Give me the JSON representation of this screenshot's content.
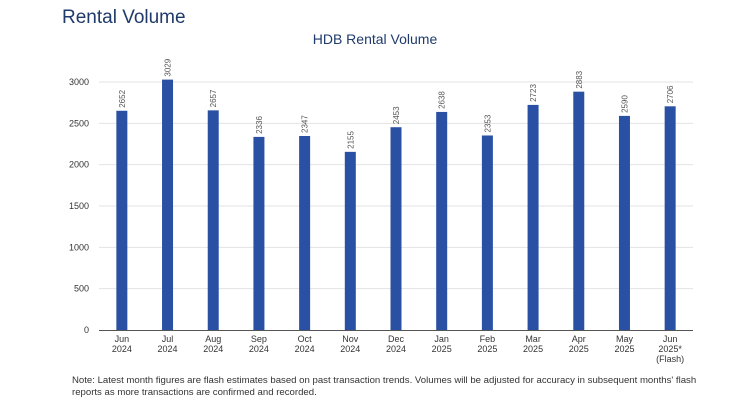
{
  "page": {
    "title": "Rental Volume",
    "note": "Note: Latest month figures are flash estimates based on past transaction trends. Volumes will be adjusted for accuracy in subsequent months' flash reports as more transactions are confirmed and recorded."
  },
  "chart_data": {
    "type": "bar",
    "title": "HDB Rental Volume",
    "xlabel": "",
    "ylabel": "",
    "categories": [
      [
        "Jun",
        "2024"
      ],
      [
        "Jul",
        "2024"
      ],
      [
        "Aug",
        "2024"
      ],
      [
        "Sep",
        "2024"
      ],
      [
        "Oct",
        "2024"
      ],
      [
        "Nov",
        "2024"
      ],
      [
        "Dec",
        "2024"
      ],
      [
        "Jan",
        "2025"
      ],
      [
        "Feb",
        "2025"
      ],
      [
        "Mar",
        "2025"
      ],
      [
        "Apr",
        "2025"
      ],
      [
        "May",
        "2025"
      ],
      [
        "Jun",
        "2025*",
        "(Flash)"
      ]
    ],
    "values": [
      2652,
      3029,
      2657,
      2336,
      2347,
      2155,
      2453,
      2638,
      2353,
      2723,
      2883,
      2590,
      2706
    ],
    "ylim": [
      0,
      3000
    ],
    "yticks": [
      0,
      500,
      1000,
      1500,
      2000,
      2500,
      3000
    ],
    "grid": true,
    "colors": {
      "bar": "#2a50a3",
      "grid": "#e3e3e3",
      "axis": "#555555"
    }
  }
}
